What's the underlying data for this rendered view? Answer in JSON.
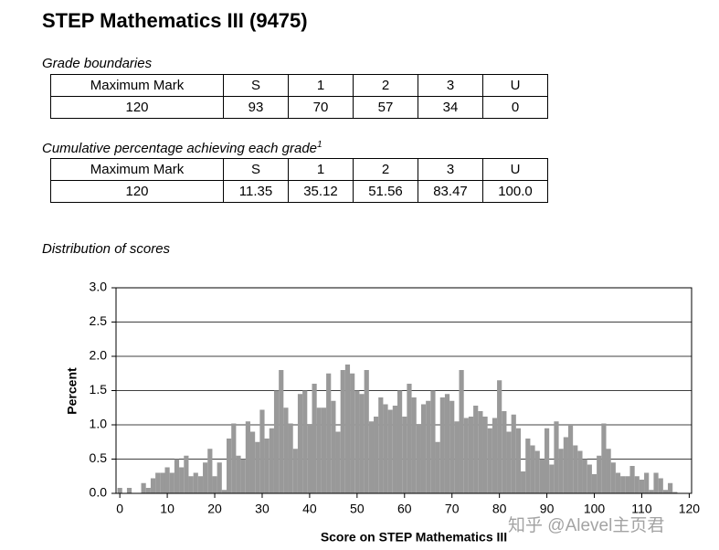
{
  "title": "STEP Mathematics III (9475)",
  "grade_boundaries": {
    "caption": "Grade boundaries",
    "header": [
      "Maximum Mark",
      "S",
      "1",
      "2",
      "3",
      "U"
    ],
    "row": [
      "120",
      "93",
      "70",
      "57",
      "34",
      "0"
    ]
  },
  "cumulative": {
    "caption": "Cumulative percentage achieving each grade",
    "footnote": "1",
    "header": [
      "Maximum Mark",
      "S",
      "1",
      "2",
      "3",
      "U"
    ],
    "row": [
      "120",
      "11.35",
      "35.12",
      "51.56",
      "83.47",
      "100.0"
    ]
  },
  "distribution_caption": "Distribution of scores",
  "chart_data": {
    "type": "bar",
    "xlabel": "Score on STEP Mathematics III",
    "ylabel": "Percent",
    "color": "#999999",
    "x": [
      0,
      1,
      2,
      3,
      4,
      5,
      6,
      7,
      8,
      9,
      10,
      11,
      12,
      13,
      14,
      15,
      16,
      17,
      18,
      19,
      20,
      21,
      22,
      23,
      24,
      25,
      26,
      27,
      28,
      29,
      30,
      31,
      32,
      33,
      34,
      35,
      36,
      37,
      38,
      39,
      40,
      41,
      42,
      43,
      44,
      45,
      46,
      47,
      48,
      49,
      50,
      51,
      52,
      53,
      54,
      55,
      56,
      57,
      58,
      59,
      60,
      61,
      62,
      63,
      64,
      65,
      66,
      67,
      68,
      69,
      70,
      71,
      72,
      73,
      74,
      75,
      76,
      77,
      78,
      79,
      80,
      81,
      82,
      83,
      84,
      85,
      86,
      87,
      88,
      89,
      90,
      91,
      92,
      93,
      94,
      95,
      96,
      97,
      98,
      99,
      100,
      101,
      102,
      103,
      104,
      105,
      106,
      107,
      108,
      109,
      110,
      111,
      112,
      113,
      114,
      115,
      116,
      117,
      118,
      119,
      120
    ],
    "values": [
      0.08,
      0,
      0.08,
      0,
      0,
      0.15,
      0.08,
      0.22,
      0.3,
      0.3,
      0.38,
      0.3,
      0.5,
      0.38,
      0.55,
      0.25,
      0.3,
      0.25,
      0.45,
      0.65,
      0.25,
      0.45,
      0.05,
      0.8,
      1.02,
      0.55,
      0.5,
      1.05,
      0.9,
      0.75,
      1.22,
      0.8,
      0.95,
      1.5,
      1.8,
      1.25,
      1.02,
      0.65,
      1.45,
      1.5,
      1.0,
      1.6,
      1.25,
      1.25,
      1.75,
      1.35,
      0.9,
      1.8,
      1.88,
      1.75,
      1.5,
      1.45,
      1.8,
      1.05,
      1.12,
      1.4,
      1.3,
      1.22,
      1.28,
      1.5,
      1.12,
      1.6,
      1.4,
      1.0,
      1.3,
      1.35,
      1.5,
      0.75,
      1.4,
      1.45,
      1.35,
      1.05,
      1.8,
      1.1,
      1.12,
      1.28,
      1.2,
      1.12,
      0.95,
      1.1,
      1.65,
      1.2,
      0.9,
      1.15,
      0.95,
      0.32,
      0.8,
      0.7,
      0.62,
      0.5,
      0.95,
      0.42,
      1.05,
      0.65,
      0.82,
      1.0,
      0.7,
      0.62,
      0.5,
      0.42,
      0.28,
      0.55,
      1.02,
      0.65,
      0.45,
      0.3,
      0.25,
      0.25,
      0.4,
      0.25,
      0.2,
      0.3,
      0.05,
      0.3,
      0.22,
      0.05,
      0.15,
      0.02,
      0,
      0,
      0
    ],
    "xlim": [
      -0.8,
      120.5
    ],
    "xticks": [
      0,
      10,
      20,
      30,
      40,
      50,
      60,
      70,
      80,
      90,
      100,
      110,
      120
    ],
    "ylim": [
      0,
      3
    ],
    "yticks": [
      {
        "value": 0,
        "label": "0.0"
      },
      {
        "value": 0.5,
        "label": "0.5"
      },
      {
        "value": 1,
        "label": "1.0"
      },
      {
        "value": 1.5,
        "label": "1.5"
      },
      {
        "value": 2,
        "label": "2.0"
      },
      {
        "value": 2.5,
        "label": "2.5"
      },
      {
        "value": 3,
        "label": "3.0"
      }
    ],
    "grid": true
  },
  "watermark": "知乎 @Alevel主页君"
}
